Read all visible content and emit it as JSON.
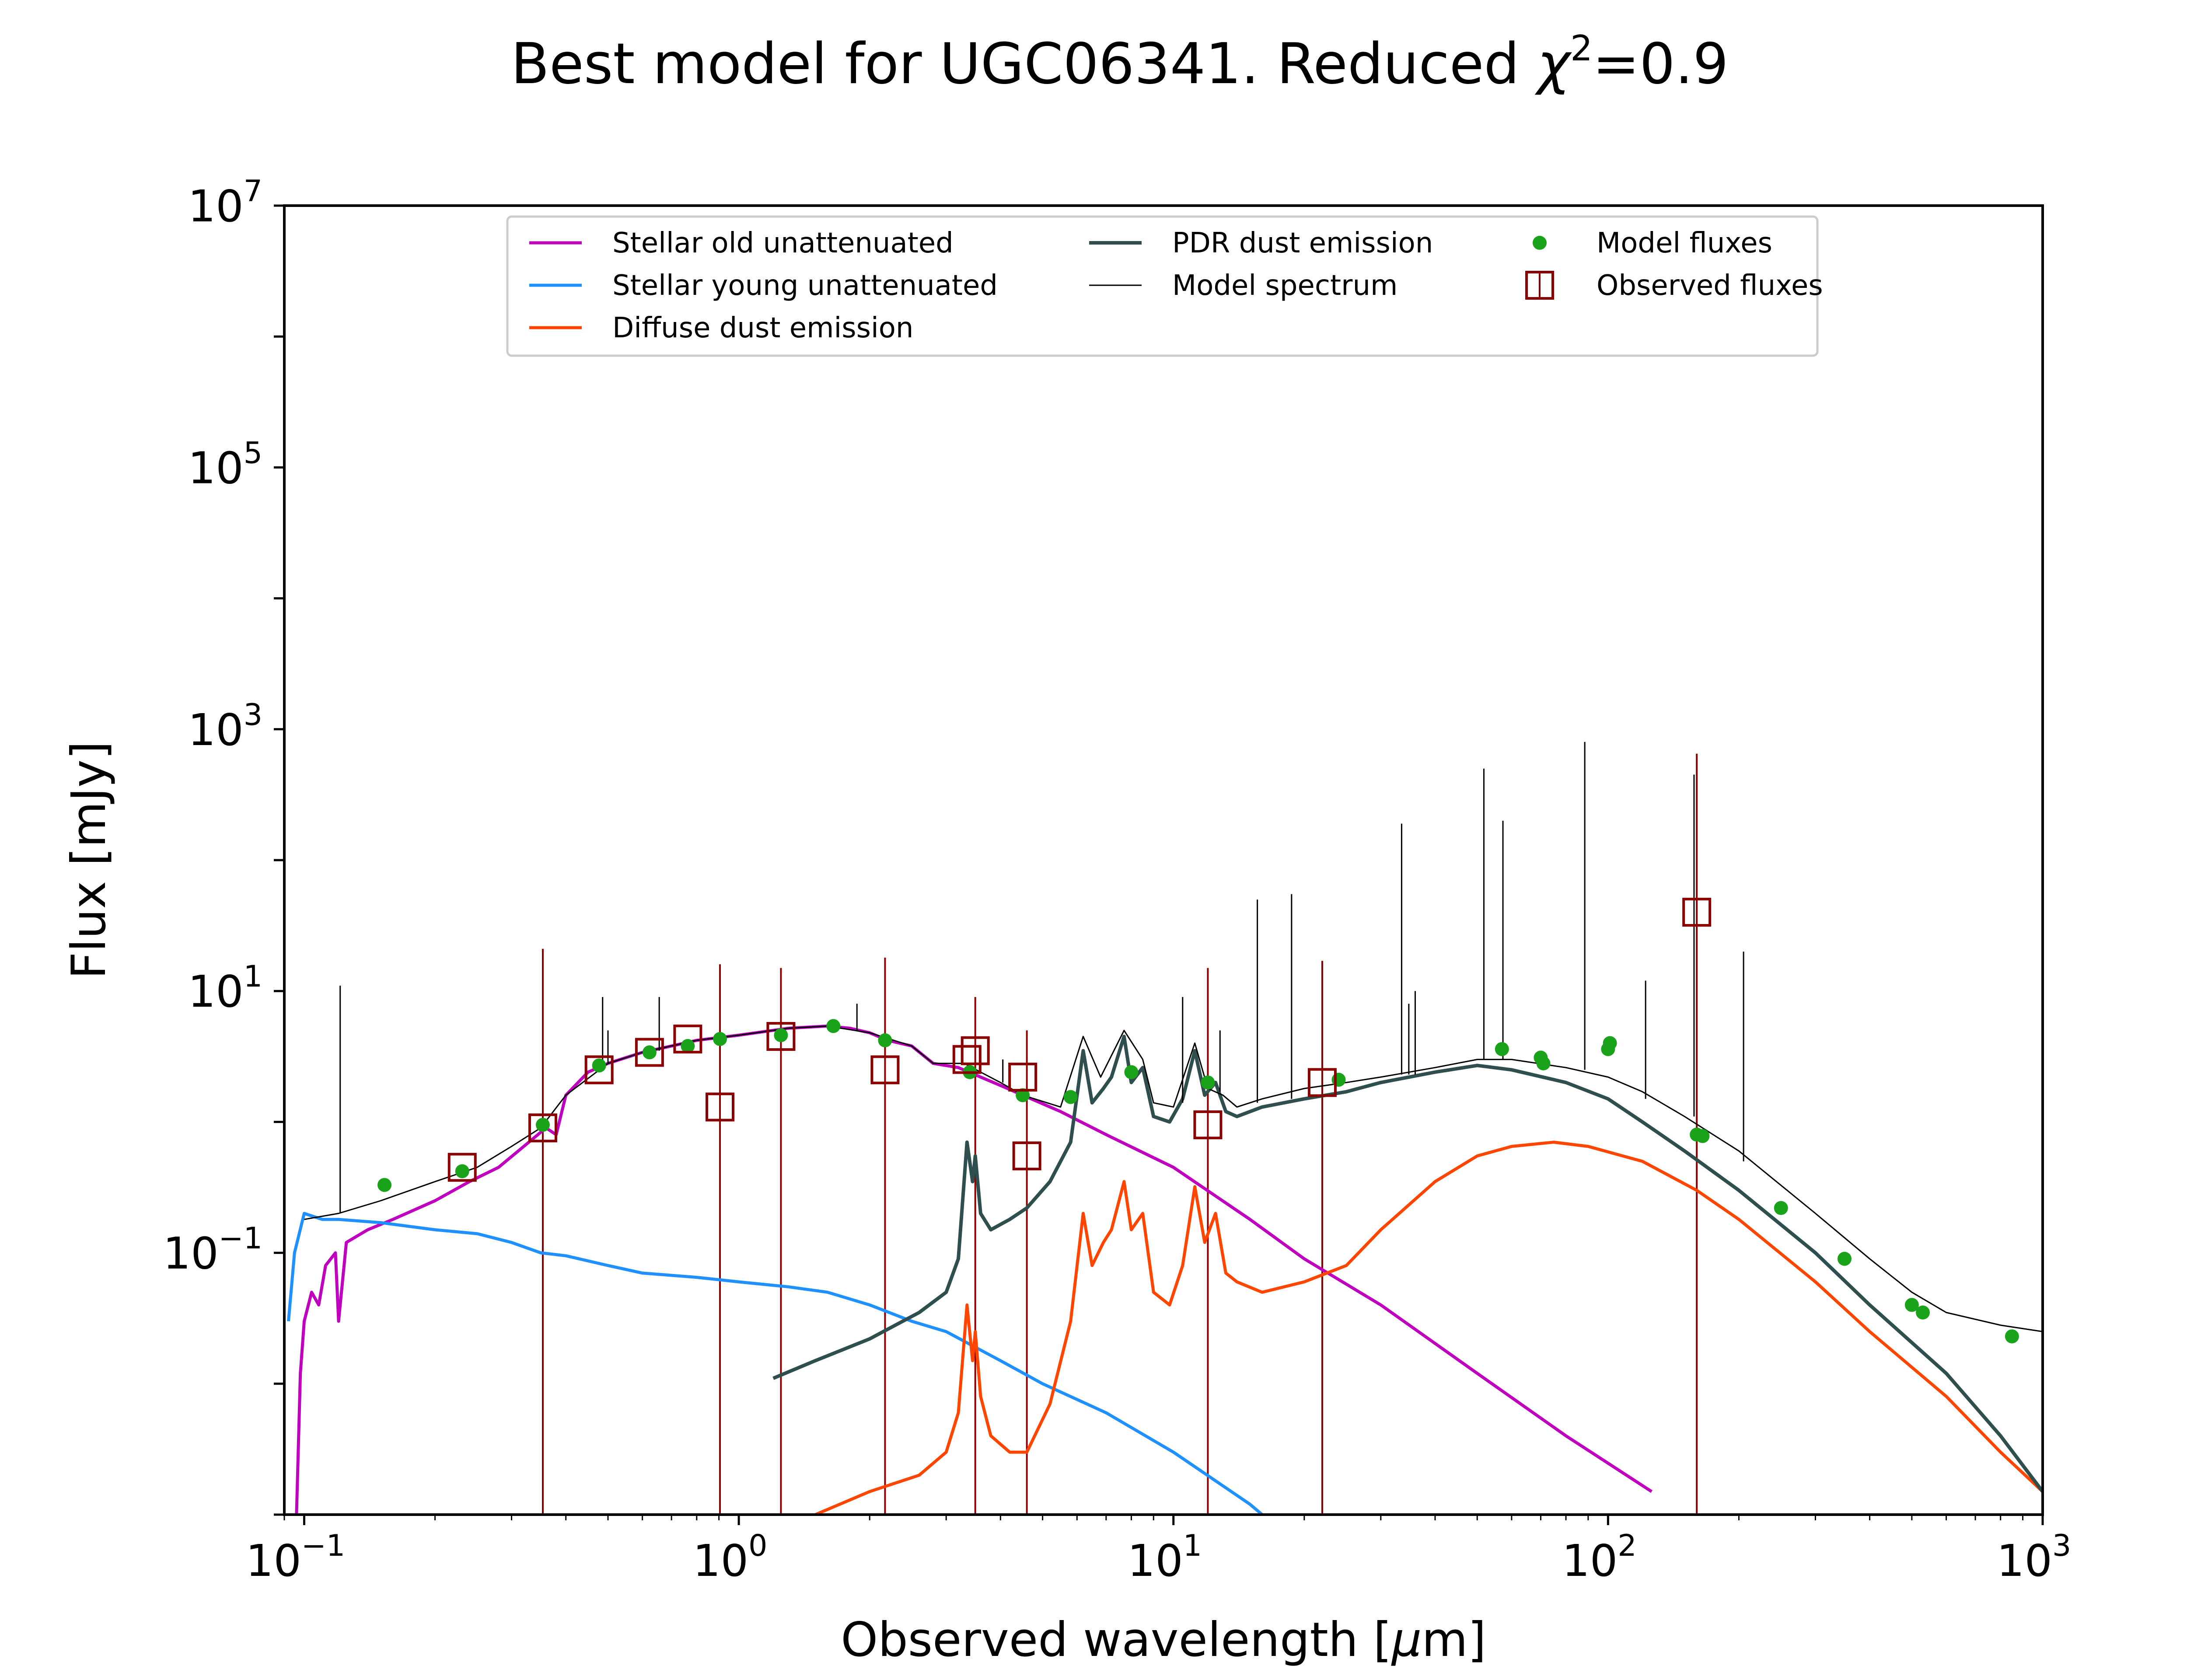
{
  "chart_data": {
    "type": "line",
    "title_main": "Best model for UGC06341. Reduced ",
    "title_chi": "χ",
    "title_sup": "2",
    "title_value": "=0.9",
    "xlabel_main": "Observed wavelength [",
    "xlabel_mu": "μ",
    "xlabel_end": "m]",
    "ylabel": "Flux [mJy]",
    "x_scale": "log",
    "y_scale": "log",
    "xlim": [
      0.09,
      1000
    ],
    "ylim": [
      0.001,
      10000000
    ],
    "grid": false,
    "legend_position": "top",
    "x_ticks": [
      {
        "base": "10",
        "exp": "−1",
        "value": 0.1
      },
      {
        "base": "10",
        "exp": "0",
        "value": 1
      },
      {
        "base": "10",
        "exp": "1",
        "value": 10
      },
      {
        "base": "10",
        "exp": "2",
        "value": 100
      },
      {
        "base": "10",
        "exp": "3",
        "value": 1000
      }
    ],
    "y_ticks": [
      {
        "base": "10",
        "exp": "−1",
        "value": 0.1
      },
      {
        "base": "10",
        "exp": "1",
        "value": 10
      },
      {
        "base": "10",
        "exp": "3",
        "value": 1000
      },
      {
        "base": "10",
        "exp": "5",
        "value": 100000
      },
      {
        "base": "10",
        "exp": "7",
        "value": 10000000
      }
    ],
    "series": [
      {
        "name": "Stellar old unattenuated",
        "kind": "line",
        "color": "#bf00bf",
        "points": [
          [
            0.096,
            0.001
          ],
          [
            0.098,
            0.012
          ],
          [
            0.1,
            0.03
          ],
          [
            0.104,
            0.05
          ],
          [
            0.108,
            0.04
          ],
          [
            0.112,
            0.08
          ],
          [
            0.118,
            0.1
          ],
          [
            0.12,
            0.03
          ],
          [
            0.125,
            0.12
          ],
          [
            0.14,
            0.15
          ],
          [
            0.16,
            0.18
          ],
          [
            0.2,
            0.25
          ],
          [
            0.24,
            0.35
          ],
          [
            0.28,
            0.45
          ],
          [
            0.32,
            0.65
          ],
          [
            0.36,
            0.9
          ],
          [
            0.38,
            0.8
          ],
          [
            0.4,
            1.6
          ],
          [
            0.45,
            2.4
          ],
          [
            0.5,
            2.8
          ],
          [
            0.6,
            3.4
          ],
          [
            0.7,
            3.8
          ],
          [
            0.8,
            4.2
          ],
          [
            1.0,
            4.6
          ],
          [
            1.3,
            5.2
          ],
          [
            1.6,
            5.4
          ],
          [
            1.8,
            5.2
          ],
          [
            2.0,
            4.8
          ],
          [
            2.2,
            4.2
          ],
          [
            2.5,
            3.8
          ],
          [
            2.8,
            2.8
          ],
          [
            3.2,
            2.6
          ],
          [
            3.6,
            2.2
          ],
          [
            4.0,
            1.9
          ],
          [
            4.5,
            1.6
          ],
          [
            5.5,
            1.2
          ],
          [
            7,
            0.8
          ],
          [
            10,
            0.45
          ],
          [
            15,
            0.18
          ],
          [
            20,
            0.09
          ],
          [
            30,
            0.04
          ],
          [
            50,
            0.012
          ],
          [
            80,
            0.004
          ],
          [
            126,
            0.0015
          ]
        ]
      },
      {
        "name": "Stellar young unattenuated",
        "kind": "line",
        "color": "#1e90ff",
        "points": [
          [
            0.092,
            0.03
          ],
          [
            0.095,
            0.1
          ],
          [
            0.1,
            0.2
          ],
          [
            0.11,
            0.18
          ],
          [
            0.12,
            0.18
          ],
          [
            0.15,
            0.17
          ],
          [
            0.2,
            0.15
          ],
          [
            0.25,
            0.14
          ],
          [
            0.3,
            0.12
          ],
          [
            0.35,
            0.1
          ],
          [
            0.4,
            0.095
          ],
          [
            0.5,
            0.08
          ],
          [
            0.6,
            0.07
          ],
          [
            0.8,
            0.065
          ],
          [
            1.0,
            0.06
          ],
          [
            1.3,
            0.055
          ],
          [
            1.6,
            0.05
          ],
          [
            2.0,
            0.04
          ],
          [
            2.5,
            0.03
          ],
          [
            3.0,
            0.025
          ],
          [
            4.0,
            0.015
          ],
          [
            5.0,
            0.01
          ],
          [
            7.0,
            0.006
          ],
          [
            10,
            0.003
          ],
          [
            15,
            0.0012
          ],
          [
            16,
            0.001
          ]
        ]
      },
      {
        "name": "Diffuse dust emission",
        "kind": "line",
        "color": "#ff4500",
        "points": [
          [
            1.5,
            0.001
          ],
          [
            2.0,
            0.0015
          ],
          [
            2.6,
            0.002
          ],
          [
            3.0,
            0.003
          ],
          [
            3.2,
            0.006
          ],
          [
            3.35,
            0.04
          ],
          [
            3.45,
            0.015
          ],
          [
            3.5,
            0.025
          ],
          [
            3.6,
            0.008
          ],
          [
            3.8,
            0.004
          ],
          [
            4.2,
            0.003
          ],
          [
            4.6,
            0.003
          ],
          [
            5.2,
            0.007
          ],
          [
            5.8,
            0.03
          ],
          [
            6.2,
            0.2
          ],
          [
            6.5,
            0.08
          ],
          [
            6.9,
            0.12
          ],
          [
            7.2,
            0.15
          ],
          [
            7.7,
            0.35
          ],
          [
            8.0,
            0.15
          ],
          [
            8.5,
            0.2
          ],
          [
            9.0,
            0.05
          ],
          [
            9.8,
            0.04
          ],
          [
            10.5,
            0.08
          ],
          [
            11.2,
            0.32
          ],
          [
            11.8,
            0.12
          ],
          [
            12.5,
            0.2
          ],
          [
            13.2,
            0.07
          ],
          [
            14,
            0.06
          ],
          [
            16,
            0.05
          ],
          [
            20,
            0.06
          ],
          [
            25,
            0.08
          ],
          [
            30,
            0.15
          ],
          [
            40,
            0.35
          ],
          [
            50,
            0.55
          ],
          [
            60,
            0.65
          ],
          [
            75,
            0.7
          ],
          [
            90,
            0.65
          ],
          [
            120,
            0.5
          ],
          [
            160,
            0.3
          ],
          [
            200,
            0.18
          ],
          [
            300,
            0.06
          ],
          [
            400,
            0.025
          ],
          [
            600,
            0.008
          ],
          [
            800,
            0.003
          ],
          [
            1000,
            0.0015
          ]
        ]
      },
      {
        "name": "PDR dust emission",
        "kind": "line",
        "color": "#2f4f4f",
        "points": [
          [
            1.2,
            0.011
          ],
          [
            1.5,
            0.015
          ],
          [
            2.0,
            0.022
          ],
          [
            2.6,
            0.035
          ],
          [
            3.0,
            0.05
          ],
          [
            3.2,
            0.09
          ],
          [
            3.35,
            0.7
          ],
          [
            3.45,
            0.35
          ],
          [
            3.5,
            0.55
          ],
          [
            3.6,
            0.2
          ],
          [
            3.8,
            0.15
          ],
          [
            4.2,
            0.18
          ],
          [
            4.6,
            0.22
          ],
          [
            5.2,
            0.35
          ],
          [
            5.8,
            0.7
          ],
          [
            6.2,
            3.5
          ],
          [
            6.5,
            1.4
          ],
          [
            6.9,
            1.8
          ],
          [
            7.2,
            2.2
          ],
          [
            7.7,
            4.5
          ],
          [
            8.0,
            2.0
          ],
          [
            8.5,
            2.6
          ],
          [
            9.0,
            1.1
          ],
          [
            9.8,
            1.0
          ],
          [
            10.5,
            1.5
          ],
          [
            11.2,
            3.5
          ],
          [
            11.8,
            1.6
          ],
          [
            12.5,
            2.0
          ],
          [
            13.2,
            1.2
          ],
          [
            14,
            1.1
          ],
          [
            16,
            1.3
          ],
          [
            20,
            1.5
          ],
          [
            25,
            1.7
          ],
          [
            30,
            2.0
          ],
          [
            40,
            2.4
          ],
          [
            50,
            2.7
          ],
          [
            60,
            2.5
          ],
          [
            80,
            2.0
          ],
          [
            100,
            1.5
          ],
          [
            120,
            1.0
          ],
          [
            150,
            0.6
          ],
          [
            200,
            0.3
          ],
          [
            300,
            0.1
          ],
          [
            400,
            0.04
          ],
          [
            600,
            0.012
          ],
          [
            800,
            0.004
          ],
          [
            1000,
            0.0015
          ]
        ]
      },
      {
        "name": "Model spectrum",
        "kind": "line",
        "color": "#000000",
        "points": [
          [
            0.1,
            0.18
          ],
          [
            0.12,
            0.2
          ],
          [
            0.15,
            0.25
          ],
          [
            0.2,
            0.35
          ],
          [
            0.25,
            0.45
          ],
          [
            0.3,
            0.65
          ],
          [
            0.35,
            0.9
          ],
          [
            0.4,
            1.6
          ],
          [
            0.5,
            2.8
          ],
          [
            0.6,
            3.4
          ],
          [
            0.8,
            4.2
          ],
          [
            1.0,
            4.6
          ],
          [
            1.3,
            5.2
          ],
          [
            1.6,
            5.4
          ],
          [
            2.0,
            4.8
          ],
          [
            2.5,
            3.8
          ],
          [
            2.8,
            2.8
          ],
          [
            3.3,
            2.8
          ],
          [
            3.6,
            2.4
          ],
          [
            4.0,
            2.0
          ],
          [
            4.5,
            1.6
          ],
          [
            5.5,
            1.3
          ],
          [
            6.2,
            4.5
          ],
          [
            6.8,
            2.2
          ],
          [
            7.7,
            5.0
          ],
          [
            8.5,
            3.0
          ],
          [
            9.0,
            1.4
          ],
          [
            10,
            1.3
          ],
          [
            11.2,
            4.0
          ],
          [
            12,
            1.8
          ],
          [
            13,
            1.6
          ],
          [
            14,
            1.3
          ],
          [
            16,
            1.5
          ],
          [
            20,
            1.8
          ],
          [
            25,
            2.0
          ],
          [
            30,
            2.2
          ],
          [
            40,
            2.6
          ],
          [
            50,
            3.0
          ],
          [
            60,
            3.0
          ],
          [
            80,
            2.6
          ],
          [
            100,
            2.2
          ],
          [
            120,
            1.7
          ],
          [
            150,
            1.1
          ],
          [
            200,
            0.6
          ],
          [
            300,
            0.2
          ],
          [
            400,
            0.09
          ],
          [
            500,
            0.05
          ],
          [
            600,
            0.035
          ],
          [
            800,
            0.028
          ],
          [
            1000,
            0.025
          ]
        ]
      },
      {
        "name": "Model fluxes",
        "kind": "points",
        "color": "#1aa31a",
        "points": [
          [
            0.153,
            0.33
          ],
          [
            0.231,
            0.42
          ],
          [
            0.354,
            0.95
          ],
          [
            0.477,
            2.7
          ],
          [
            0.623,
            3.4
          ],
          [
            0.763,
            3.8
          ],
          [
            0.905,
            4.3
          ],
          [
            1.25,
            4.6
          ],
          [
            1.65,
            5.4
          ],
          [
            2.17,
            4.2
          ],
          [
            3.4,
            2.4
          ],
          [
            4.5,
            1.6
          ],
          [
            5.8,
            1.55
          ],
          [
            8.0,
            2.4
          ],
          [
            12,
            2.0
          ],
          [
            24,
            2.1
          ],
          [
            57,
            3.6
          ],
          [
            70,
            3.1
          ],
          [
            71,
            2.8
          ],
          [
            100,
            3.6
          ],
          [
            101,
            4.0
          ],
          [
            160,
            0.8
          ],
          [
            165,
            0.78
          ],
          [
            250,
            0.22
          ],
          [
            350,
            0.09
          ],
          [
            500,
            0.04
          ],
          [
            530,
            0.035
          ],
          [
            850,
            0.023
          ]
        ]
      },
      {
        "name": "Observed fluxes",
        "kind": "squares",
        "color": "#8b0000",
        "points": [
          [
            0.231,
            0.45
          ],
          [
            0.354,
            0.9
          ],
          [
            0.477,
            2.5
          ],
          [
            0.623,
            3.4
          ],
          [
            0.763,
            4.3
          ],
          [
            0.905,
            1.3
          ],
          [
            1.25,
            4.5
          ],
          [
            2.17,
            2.5
          ],
          [
            3.35,
            3.0
          ],
          [
            3.5,
            3.5
          ],
          [
            4.5,
            2.2
          ],
          [
            4.6,
            0.55
          ],
          [
            12,
            0.95
          ],
          [
            22,
            2.0
          ],
          [
            160,
            40
          ]
        ]
      }
    ],
    "observed_error_bars": [
      {
        "x": 0.354,
        "high": 21
      },
      {
        "x": 0.905,
        "high": 16
      },
      {
        "x": 1.25,
        "high": 15
      },
      {
        "x": 2.17,
        "high": 18
      },
      {
        "x": 3.5,
        "high": 9
      },
      {
        "x": 4.6,
        "high": 5
      },
      {
        "x": 12,
        "high": 15
      },
      {
        "x": 22,
        "high": 17
      },
      {
        "x": 160,
        "high": 650
      }
    ],
    "emission_lines": [
      {
        "x": 0.121,
        "low": 0.2,
        "high": 11
      },
      {
        "x": 0.486,
        "low": 2.7,
        "high": 9
      },
      {
        "x": 0.5,
        "low": 2.8,
        "high": 5
      },
      {
        "x": 0.656,
        "low": 3.5,
        "high": 9
      },
      {
        "x": 1.87,
        "low": 5,
        "high": 8
      },
      {
        "x": 4.05,
        "low": 2,
        "high": 3
      },
      {
        "x": 10.5,
        "low": 1.4,
        "high": 9
      },
      {
        "x": 12.8,
        "low": 1.7,
        "high": 5
      },
      {
        "x": 15.6,
        "low": 1.4,
        "high": 50
      },
      {
        "x": 18.7,
        "low": 1.5,
        "high": 55
      },
      {
        "x": 33.5,
        "low": 2.3,
        "high": 190
      },
      {
        "x": 34.8,
        "low": 2.3,
        "high": 8
      },
      {
        "x": 36,
        "low": 2.3,
        "high": 10
      },
      {
        "x": 51.8,
        "low": 3,
        "high": 500
      },
      {
        "x": 57.3,
        "low": 3,
        "high": 200
      },
      {
        "x": 88.4,
        "low": 2.5,
        "high": 800
      },
      {
        "x": 122,
        "low": 1.5,
        "high": 12
      },
      {
        "x": 157.7,
        "low": 1.1,
        "high": 450
      },
      {
        "x": 205,
        "low": 0.5,
        "high": 20
      }
    ]
  }
}
